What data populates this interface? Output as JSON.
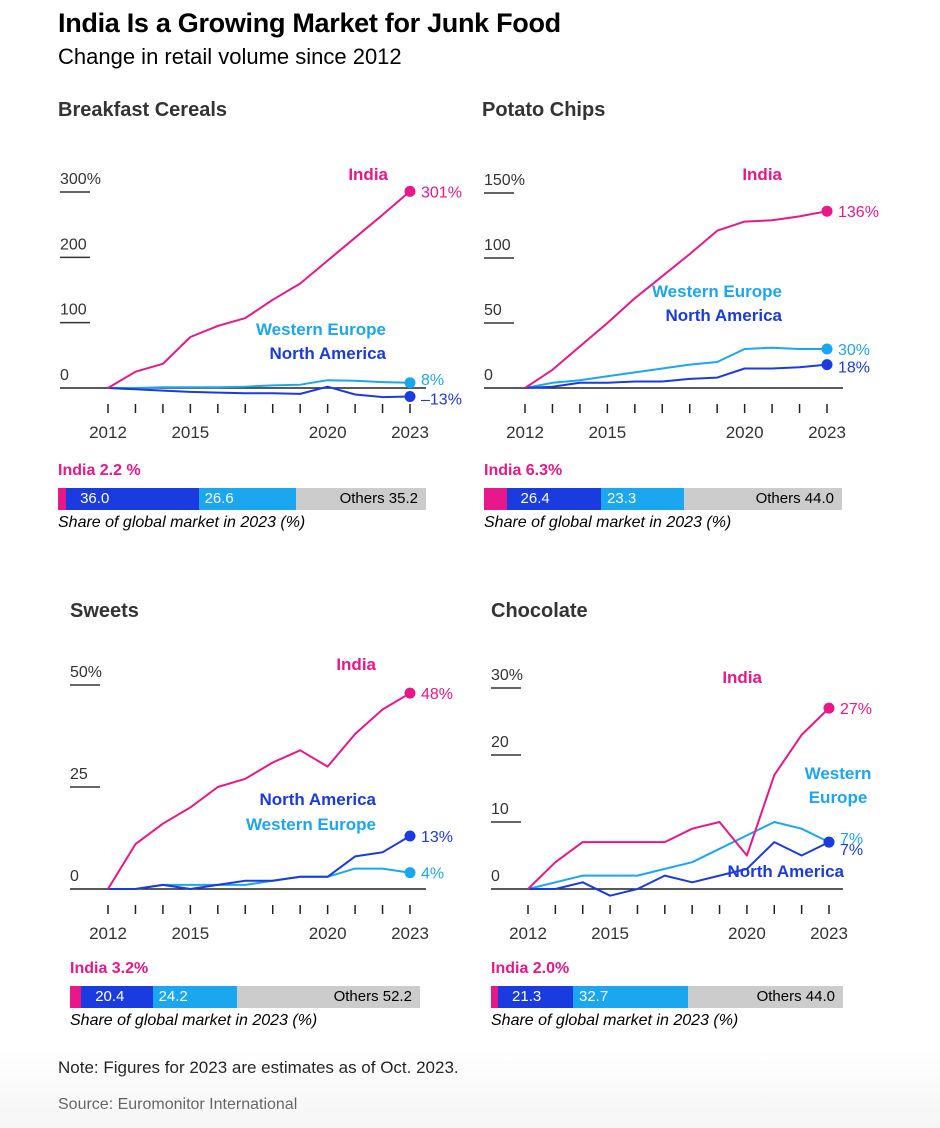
{
  "title": "India Is a Growing Market for Junk Food",
  "subtitle": "Change in retail volume since 2012",
  "colors": {
    "india": "#e8178a",
    "north_america": "#1a3be0",
    "western_europe": "#1ba7ef",
    "others": "#cccccc",
    "axis": "#222222"
  },
  "note": "Note: Figures for 2023 are estimates as of Oct. 2023.",
  "source": "Source: Euromonitor International",
  "share_caption": "Share of global market in 2023 (%)",
  "chart_data": [
    {
      "type": "line",
      "title": "Breakfast Cereals",
      "x": [
        2012,
        2013,
        2014,
        2015,
        2016,
        2017,
        2018,
        2019,
        2020,
        2021,
        2022,
        2023
      ],
      "x_tick_labels": [
        "2012",
        "2015",
        "2020",
        "2023"
      ],
      "y_ticks": [
        0,
        100,
        200,
        300
      ],
      "y_tick_labels": [
        "0",
        "100",
        "200",
        "300%"
      ],
      "ylim": [
        -30,
        310
      ],
      "series": [
        {
          "name": "India",
          "key": "india",
          "values": [
            0,
            25,
            37,
            78,
            95,
            107,
            135,
            160,
            195,
            230,
            265,
            301
          ],
          "end_label": "301%"
        },
        {
          "name": "Western Europe",
          "key": "western_europe",
          "values": [
            0,
            0,
            1,
            1,
            1,
            2,
            4,
            5,
            12,
            11,
            9,
            8
          ],
          "end_label": "8%"
        },
        {
          "name": "North America",
          "key": "north_america",
          "values": [
            0,
            -2,
            -4,
            -6,
            -7,
            -8,
            -8,
            -9,
            2,
            -10,
            -14,
            -13
          ],
          "end_label": "–13%"
        }
      ],
      "share": {
        "india": 2.2,
        "india_label": "India 2.2 %",
        "north_america": 36.0,
        "north_america_label": "36.0",
        "western_europe": 26.6,
        "western_europe_label": "26.6",
        "others": 35.2,
        "others_label": "Others 35.2"
      }
    },
    {
      "type": "line",
      "title": "Potato Chips",
      "x": [
        2012,
        2013,
        2014,
        2015,
        2016,
        2017,
        2018,
        2019,
        2020,
        2021,
        2022,
        2023
      ],
      "x_tick_labels": [
        "2012",
        "2015",
        "2020",
        "2023"
      ],
      "y_ticks": [
        0,
        50,
        100,
        150
      ],
      "y_tick_labels": [
        "0",
        "50",
        "100",
        "150%"
      ],
      "ylim": [
        -5,
        155
      ],
      "series": [
        {
          "name": "India",
          "key": "india",
          "values": [
            0,
            14,
            32,
            50,
            69,
            86,
            103,
            121,
            128,
            129,
            132,
            136
          ],
          "end_label": "136%"
        },
        {
          "name": "Western Europe",
          "key": "western_europe",
          "values": [
            0,
            4,
            6,
            9,
            12,
            15,
            18,
            20,
            30,
            31,
            30,
            30
          ],
          "end_label": "30%"
        },
        {
          "name": "North America",
          "key": "north_america",
          "values": [
            0,
            1,
            4,
            4,
            5,
            5,
            7,
            8,
            15,
            15,
            16,
            18
          ],
          "end_label": "18%"
        }
      ],
      "share": {
        "india": 6.3,
        "india_label": "India 6.3%",
        "north_america": 26.4,
        "north_america_label": "26.4",
        "western_europe": 23.3,
        "western_europe_label": "23.3",
        "others": 44.0,
        "others_label": "Others 44.0"
      }
    },
    {
      "type": "line",
      "title": "Sweets",
      "x": [
        2012,
        2013,
        2014,
        2015,
        2016,
        2017,
        2018,
        2019,
        2020,
        2021,
        2022,
        2023
      ],
      "x_tick_labels": [
        "2012",
        "2015",
        "2020",
        "2023"
      ],
      "y_ticks": [
        0,
        25,
        50
      ],
      "y_tick_labels": [
        "0",
        "25",
        "50%"
      ],
      "ylim": [
        -5,
        52
      ],
      "series": [
        {
          "name": "India",
          "key": "india",
          "values": [
            0,
            11,
            16,
            20,
            25,
            27,
            31,
            34,
            30,
            38,
            44,
            48
          ],
          "end_label": "48%"
        },
        {
          "name": "North America",
          "key": "north_america",
          "values": [
            0,
            0,
            1,
            0,
            1,
            2,
            2,
            3,
            3,
            8,
            9,
            13
          ],
          "end_label": "13%"
        },
        {
          "name": "Western Europe",
          "key": "western_europe",
          "values": [
            0,
            0,
            1,
            1,
            1,
            1,
            2,
            3,
            3,
            5,
            5,
            4
          ],
          "end_label": "4%"
        }
      ],
      "share": {
        "india": 3.2,
        "india_label": "India 3.2%",
        "north_america": 20.4,
        "north_america_label": "20.4",
        "western_europe": 24.2,
        "western_europe_label": "24.2",
        "others": 52.2,
        "others_label": "Others 52.2"
      }
    },
    {
      "type": "line",
      "title": "Chocolate",
      "x": [
        2012,
        2013,
        2014,
        2015,
        2016,
        2017,
        2018,
        2019,
        2020,
        2021,
        2022,
        2023
      ],
      "x_tick_labels": [
        "2012",
        "2015",
        "2020",
        "2023"
      ],
      "y_ticks": [
        0,
        10,
        20,
        30
      ],
      "y_tick_labels": [
        "0",
        "10",
        "20",
        "30%"
      ],
      "ylim": [
        -4,
        31
      ],
      "series": [
        {
          "name": "India",
          "key": "india",
          "values": [
            0,
            4,
            7,
            7,
            7,
            7,
            9,
            10,
            5,
            17,
            23,
            27
          ],
          "end_label": "27%"
        },
        {
          "name": "Western Europe",
          "key": "western_europe",
          "values": [
            0,
            1,
            2,
            2,
            2,
            3,
            4,
            6,
            8,
            10,
            9,
            7
          ],
          "end_label": "7%"
        },
        {
          "name": "North America",
          "key": "north_america",
          "values": [
            0,
            0,
            1,
            -1,
            0,
            2,
            1,
            2,
            3,
            7,
            5,
            7
          ],
          "end_label": "7%"
        }
      ],
      "share": {
        "india": 2.0,
        "india_label": "India 2.0%",
        "north_america": 21.3,
        "north_america_label": "21.3",
        "western_europe": 32.7,
        "western_europe_label": "32.7",
        "others": 44.0,
        "others_label": "Others 44.0"
      }
    }
  ]
}
